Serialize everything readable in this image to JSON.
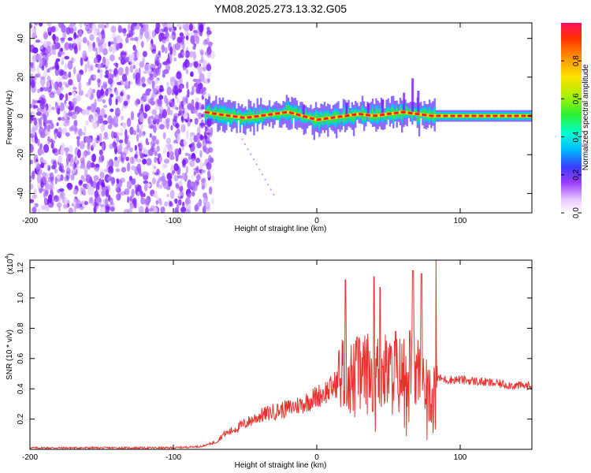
{
  "title": "YM08.2025.273.13.32.G05",
  "chart_data": [
    {
      "type": "heatmap",
      "name": "spectrogram",
      "xlabel": "Height of straight line (km)",
      "ylabel": "Frequency (Hz)",
      "xlim": [
        -200,
        150
      ],
      "ylim": [
        -50,
        48
      ],
      "xticks": [
        -200,
        -100,
        0,
        100
      ],
      "yticks": [
        -40,
        -20,
        0,
        20,
        40
      ],
      "noise_region_x": [
        -200,
        -78
      ],
      "signal_region_x": [
        -78,
        150
      ],
      "signal_centerline": [
        {
          "x": -78,
          "y": 2
        },
        {
          "x": -70,
          "y": 1
        },
        {
          "x": -60,
          "y": 0
        },
        {
          "x": -50,
          "y": -1
        },
        {
          "x": -40,
          "y": 0
        },
        {
          "x": -30,
          "y": 1
        },
        {
          "x": -20,
          "y": 2
        },
        {
          "x": -10,
          "y": 0
        },
        {
          "x": 0,
          "y": -2
        },
        {
          "x": 10,
          "y": -1
        },
        {
          "x": 20,
          "y": 0
        },
        {
          "x": 30,
          "y": 1
        },
        {
          "x": 40,
          "y": 0
        },
        {
          "x": 50,
          "y": 1
        },
        {
          "x": 60,
          "y": 2
        },
        {
          "x": 70,
          "y": 1
        },
        {
          "x": 80,
          "y": 0
        },
        {
          "x": 100,
          "y": 0
        },
        {
          "x": 120,
          "y": 0
        },
        {
          "x": 150,
          "y": 0
        }
      ],
      "colorbar": {
        "label": "Normalized spectral amplitude",
        "range": [
          0,
          1
        ],
        "ticks": [
          0.0,
          0.2,
          0.4,
          0.6,
          0.8
        ],
        "tick_labels": [
          "0.0",
          "0.2",
          "0.4",
          "0.6",
          "0.8"
        ]
      }
    },
    {
      "type": "line",
      "name": "snr",
      "xlabel": "Height of straight line (km)",
      "ylabel": "SNR (10 * v/v)",
      "scale_label": "(x10",
      "scale_exponent": "4",
      "scale_close": ")",
      "xlim": [
        -200,
        150
      ],
      "ylim": [
        0,
        1.25
      ],
      "xticks": [
        -200,
        -100,
        0,
        100
      ],
      "yticks": [
        0.2,
        0.4,
        0.6,
        0.8,
        1.0,
        1.2
      ],
      "ytick_labels": [
        "0.2",
        "0.4",
        "0.6",
        "0.8",
        "1.0",
        "1.2"
      ],
      "color": "#e8322e",
      "series": [
        {
          "name": "SNR",
          "x": [
            -200,
            -150,
            -100,
            -80,
            -70,
            -65,
            -60,
            -50,
            -40,
            -30,
            -20,
            -10,
            0,
            10,
            15,
            20,
            25,
            30,
            35,
            40,
            45,
            50,
            55,
            60,
            65,
            70,
            75,
            80,
            82,
            85,
            90,
            100,
            120,
            140,
            150
          ],
          "y": [
            0.01,
            0.01,
            0.01,
            0.02,
            0.05,
            0.1,
            0.12,
            0.17,
            0.22,
            0.25,
            0.27,
            0.3,
            0.35,
            0.4,
            0.45,
            0.55,
            0.45,
            0.48,
            0.5,
            0.52,
            0.5,
            0.5,
            0.48,
            0.5,
            0.55,
            0.5,
            0.45,
            0.45,
            0.45,
            0.47,
            0.46,
            0.46,
            0.44,
            0.42,
            0.42
          ],
          "peaks": [
            {
              "x": 20,
              "y": 1.12
            },
            {
              "x": 28,
              "y": 0.74
            },
            {
              "x": 40,
              "y": 1.14
            },
            {
              "x": 44,
              "y": 1.07
            },
            {
              "x": 55,
              "y": 0.78
            },
            {
              "x": 67,
              "y": 1.18
            },
            {
              "x": 73,
              "y": 1.16
            },
            {
              "x": 83,
              "y": 1.26
            }
          ]
        }
      ]
    }
  ]
}
